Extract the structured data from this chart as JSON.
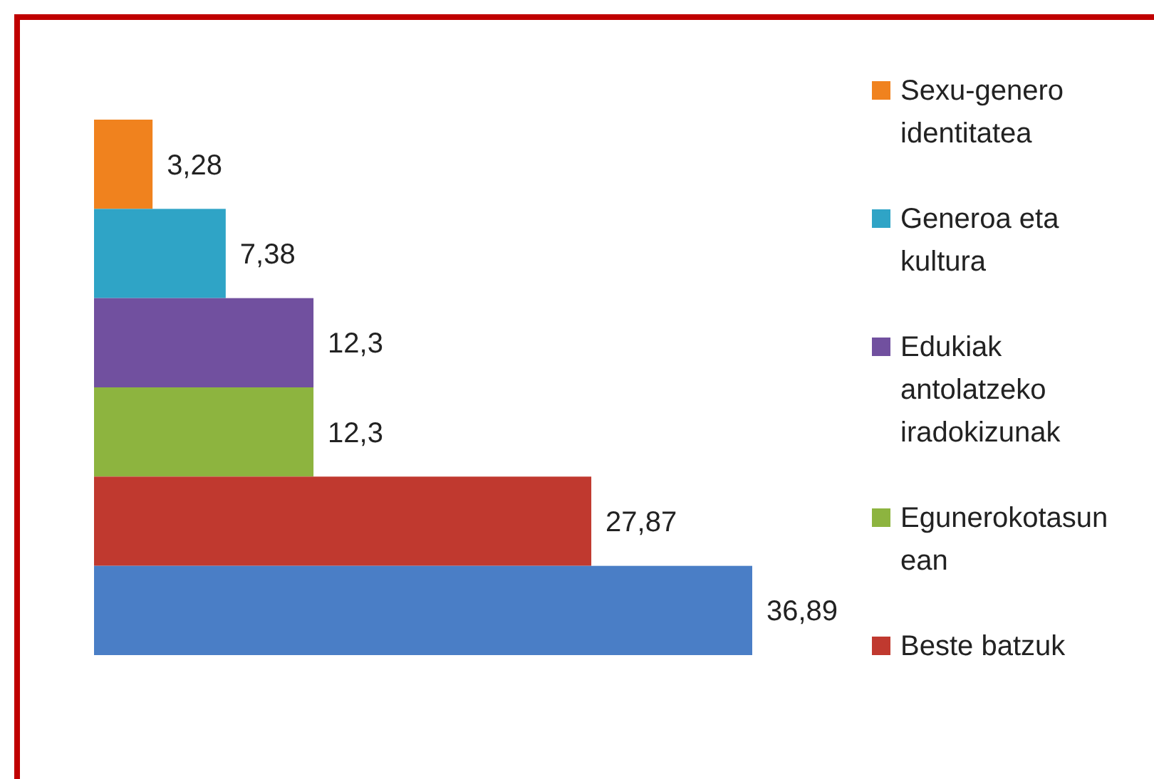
{
  "chart_data": {
    "type": "bar",
    "orientation": "horizontal",
    "stacked": true,
    "categories": [
      null,
      null,
      null,
      null,
      null,
      null
    ],
    "legend": "right",
    "series": [
      {
        "name": "Sexu-genero identitatea",
        "color": "#f0821e",
        "values": [
          3.28,
          null,
          null,
          null,
          null,
          null
        ],
        "value_labels": [
          "3,28",
          null,
          null,
          null,
          null,
          null
        ]
      },
      {
        "name": "Generoa eta kultura",
        "color": "#2fa4c6",
        "values": [
          null,
          7.38,
          null,
          null,
          null,
          null
        ],
        "value_labels": [
          null,
          "7,38",
          null,
          null,
          null,
          null
        ]
      },
      {
        "name": "Edukiak antolatzeko iradokizunak",
        "color": "#71509f",
        "values": [
          null,
          null,
          12.3,
          null,
          null,
          null
        ],
        "value_labels": [
          null,
          null,
          "12,3",
          null,
          null,
          null
        ]
      },
      {
        "name": "Egunerokotasunean",
        "color": "#8db43f",
        "values": [
          null,
          null,
          null,
          12.3,
          null,
          null
        ],
        "value_labels": [
          null,
          null,
          null,
          "12,3",
          null,
          null
        ]
      },
      {
        "name": "Beste batzuk",
        "color": "#c0392f",
        "values": [
          null,
          null,
          null,
          null,
          27.87,
          null
        ],
        "value_labels": [
          null,
          null,
          null,
          null,
          "27,87",
          null
        ]
      },
      {
        "color": "#4a7ec6",
        "values": [
          null,
          null,
          null,
          null,
          null,
          36.89
        ],
        "value_labels": [
          null,
          null,
          null,
          null,
          null,
          "36,89"
        ]
      }
    ]
  }
}
